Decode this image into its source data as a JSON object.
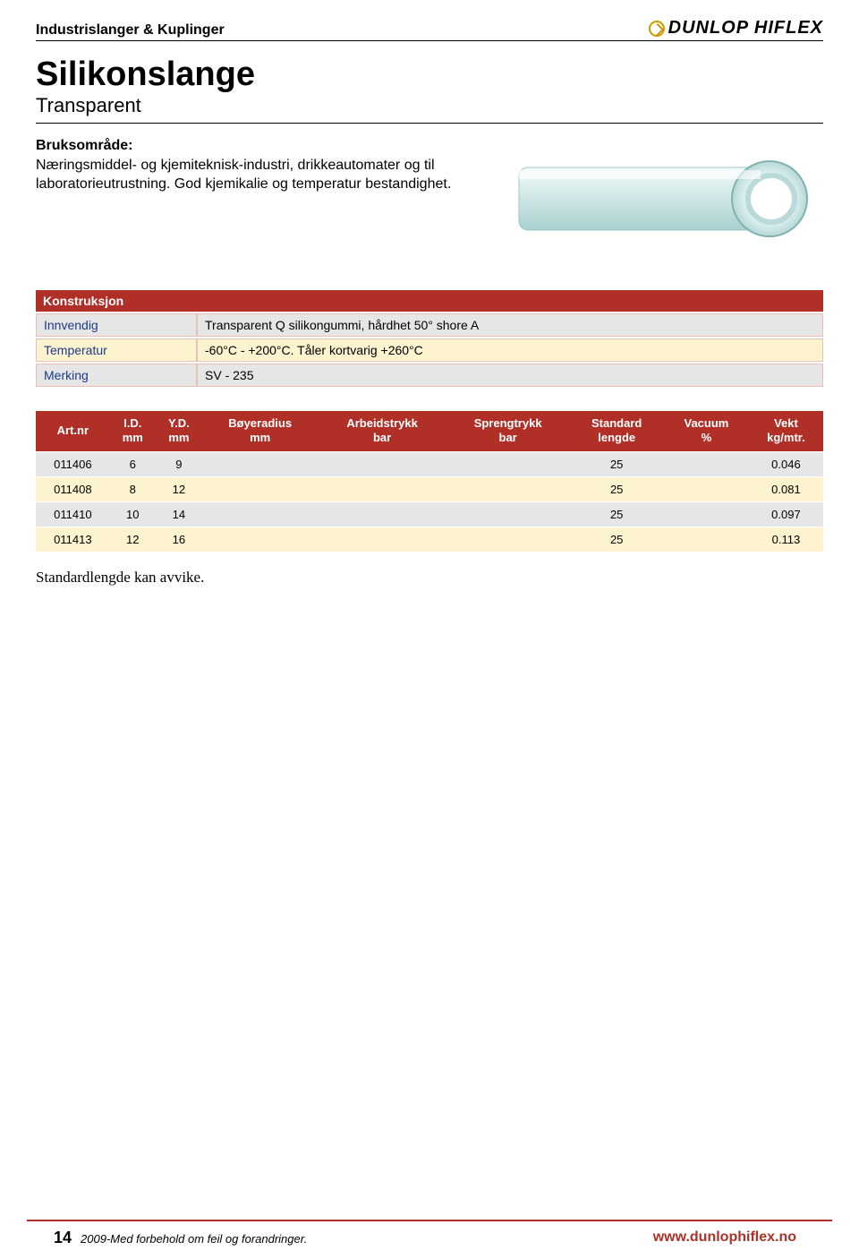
{
  "header": {
    "section_title": "Industrislanger & Kuplinger",
    "brand": "DUNLOP HIFLEX"
  },
  "title": "Silikonslange",
  "subtitle": "Transparent",
  "intro": {
    "label": "Bruksområde:",
    "body": "Næringsmiddel- og kjemiteknisk-industri, drikkeautomater og til laboratorieutrustning. God kjemikalie og temperatur bestandighet."
  },
  "spec": {
    "header": "Konstruksjon",
    "rows": [
      {
        "label": "Innvendig",
        "value": "Transparent Q silikongummi, hårdhet 50° shore A",
        "bg": "grey"
      },
      {
        "label": "Temperatur",
        "value": "-60°C - +200°C. Tåler kortvarig +260°C",
        "bg": "yellow"
      },
      {
        "label": "Merking",
        "value": "SV - 235",
        "bg": "grey"
      }
    ]
  },
  "data_table": {
    "columns": [
      "Art.nr",
      "I.D.\nmm",
      "Y.D.\nmm",
      "Bøyeradius\nmm",
      "Arbeidstrykk\nbar",
      "Sprengtrykk\nbar",
      "Standard\nlengde",
      "Vacuum\n%",
      "Vekt\nkg/mtr."
    ],
    "rows": [
      {
        "bg": "grey",
        "cells": [
          "011406",
          "6",
          "9",
          "",
          "",
          "",
          "25",
          "",
          "0.046"
        ]
      },
      {
        "bg": "yellow",
        "cells": [
          "011408",
          "8",
          "12",
          "",
          "",
          "",
          "25",
          "",
          "0.081"
        ]
      },
      {
        "bg": "grey",
        "cells": [
          "011410",
          "10",
          "14",
          "",
          "",
          "",
          "25",
          "",
          "0.097"
        ]
      },
      {
        "bg": "yellow",
        "cells": [
          "011413",
          "12",
          "16",
          "",
          "",
          "",
          "25",
          "",
          "0.113"
        ]
      }
    ]
  },
  "note": "Standardlengde kan avvike.",
  "footer": {
    "page_number": "14",
    "disclaimer": "2009-Med forbehold om feil og forandringer.",
    "url": "www.dunlophiflex.no"
  },
  "colors": {
    "header_bar": "#b03028",
    "row_yellow": "#fdf3ce",
    "row_grey": "#e6e6e6",
    "label_blue": "#1a3a8a",
    "brand_accent": "#cc9900"
  }
}
